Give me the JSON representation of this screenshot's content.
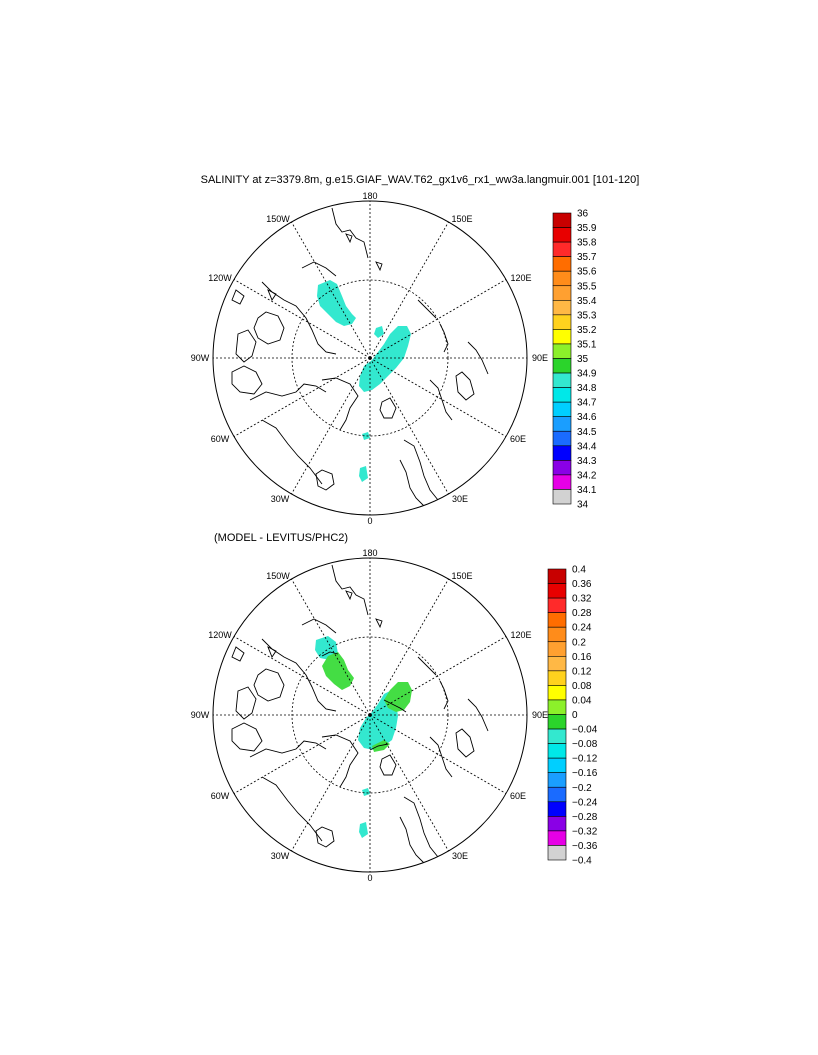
{
  "title": "SALINITY at z=3379.8m, g.e15.GIAF_WAV.T62_gx1v6_rx1_ww3a.langmuir.001 [101-120]",
  "diff_title": "(MODEL - LEVITUS/PHC2)",
  "longitude_labels": {
    "north": "180",
    "south": "0",
    "lon150w": "150W",
    "lon150e": "150E",
    "lon120w": "120W",
    "lon120e": "120E",
    "lon90w": "90W",
    "lon90e": "90E",
    "lon60w": "60W",
    "lon60e": "60E",
    "lon30w": "30W",
    "lon30e": "30E"
  },
  "colors": {
    "cyan_fill": "#33e8cf",
    "green_fill": "#44dd44",
    "land_line": "#000000",
    "grid_line": "#000000"
  },
  "maps": [
    {
      "name": "salinity",
      "scale_labels": [
        "36",
        "35.9",
        "35.8",
        "35.7",
        "35.6",
        "35.5",
        "35.4",
        "35.3",
        "35.2",
        "35.1",
        "35",
        "34.9",
        "34.8",
        "34.7",
        "34.6",
        "34.5",
        "34.4",
        "34.3",
        "34.2",
        "34.1",
        "34"
      ],
      "scale_colors": [
        "#c80000",
        "#e80000",
        "#ff2a2a",
        "#ff6d00",
        "#ff8c1a",
        "#ffa030",
        "#ffb845",
        "#ffd21e",
        "#ffff00",
        "#8cf02a",
        "#2bd42b",
        "#33e8cf",
        "#00e8e8",
        "#00cfff",
        "#1a9eff",
        "#1a6bff",
        "#0000ff",
        "#8a00e6",
        "#e600e6",
        "#d2d2d2",
        "#6e6e6e"
      ]
    },
    {
      "name": "difference",
      "scale_labels": [
        "0.4",
        "0.36",
        "0.32",
        "0.28",
        "0.24",
        "0.2",
        "0.16",
        "0.12",
        "0.08",
        "0.04",
        "0",
        "−0.04",
        "−0.08",
        "−0.12",
        "−0.16",
        "−0.2",
        "−0.24",
        "−0.28",
        "−0.32",
        "−0.36",
        "−0.4"
      ],
      "scale_colors": [
        "#c80000",
        "#e80000",
        "#ff2a2a",
        "#ff6d00",
        "#ff8c1a",
        "#ffa030",
        "#ffb845",
        "#ffd21e",
        "#ffff00",
        "#8cf02a",
        "#2bd42b",
        "#33e8cf",
        "#00e8e8",
        "#00cfff",
        "#1a9eff",
        "#1a6bff",
        "#0000ff",
        "#8a00e6",
        "#e600e6",
        "#d2d2d2",
        "#6e6e6e"
      ]
    }
  ]
}
